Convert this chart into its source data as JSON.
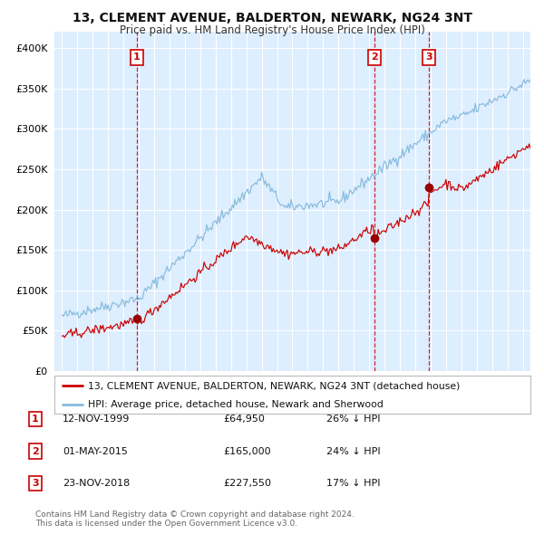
{
  "title": "13, CLEMENT AVENUE, BALDERTON, NEWARK, NG24 3NT",
  "subtitle": "Price paid vs. HM Land Registry's House Price Index (HPI)",
  "legend_label_red": "13, CLEMENT AVENUE, BALDERTON, NEWARK, NG24 3NT (detached house)",
  "legend_label_blue": "HPI: Average price, detached house, Newark and Sherwood",
  "sale_points": [
    {
      "label": "1",
      "date_label": "12-NOV-1999",
      "price": 64950,
      "price_str": "£64,950",
      "pct": "26% ↓ HPI"
    },
    {
      "label": "2",
      "date_label": "01-MAY-2015",
      "price": 165000,
      "price_str": "£165,000",
      "pct": "24% ↓ HPI"
    },
    {
      "label": "3",
      "date_label": "23-NOV-2018",
      "price": 227550,
      "price_str": "£227,550",
      "pct": "17% ↓ HPI"
    }
  ],
  "sale_dates_num": [
    1999.87,
    2015.33,
    2018.9
  ],
  "copyright": "Contains HM Land Registry data © Crown copyright and database right 2024.\nThis data is licensed under the Open Government Licence v3.0.",
  "ylim": [
    0,
    420000
  ],
  "xlim_start": 1994.5,
  "xlim_end": 2025.5,
  "hpi_color": "#88bbdd",
  "price_color": "#cc0000",
  "sale_marker_color": "#990000",
  "vline_color": "#cc0000",
  "bg_color": "#ddeeff",
  "grid_color": "#ffffff",
  "fig_bg": "#ffffff"
}
